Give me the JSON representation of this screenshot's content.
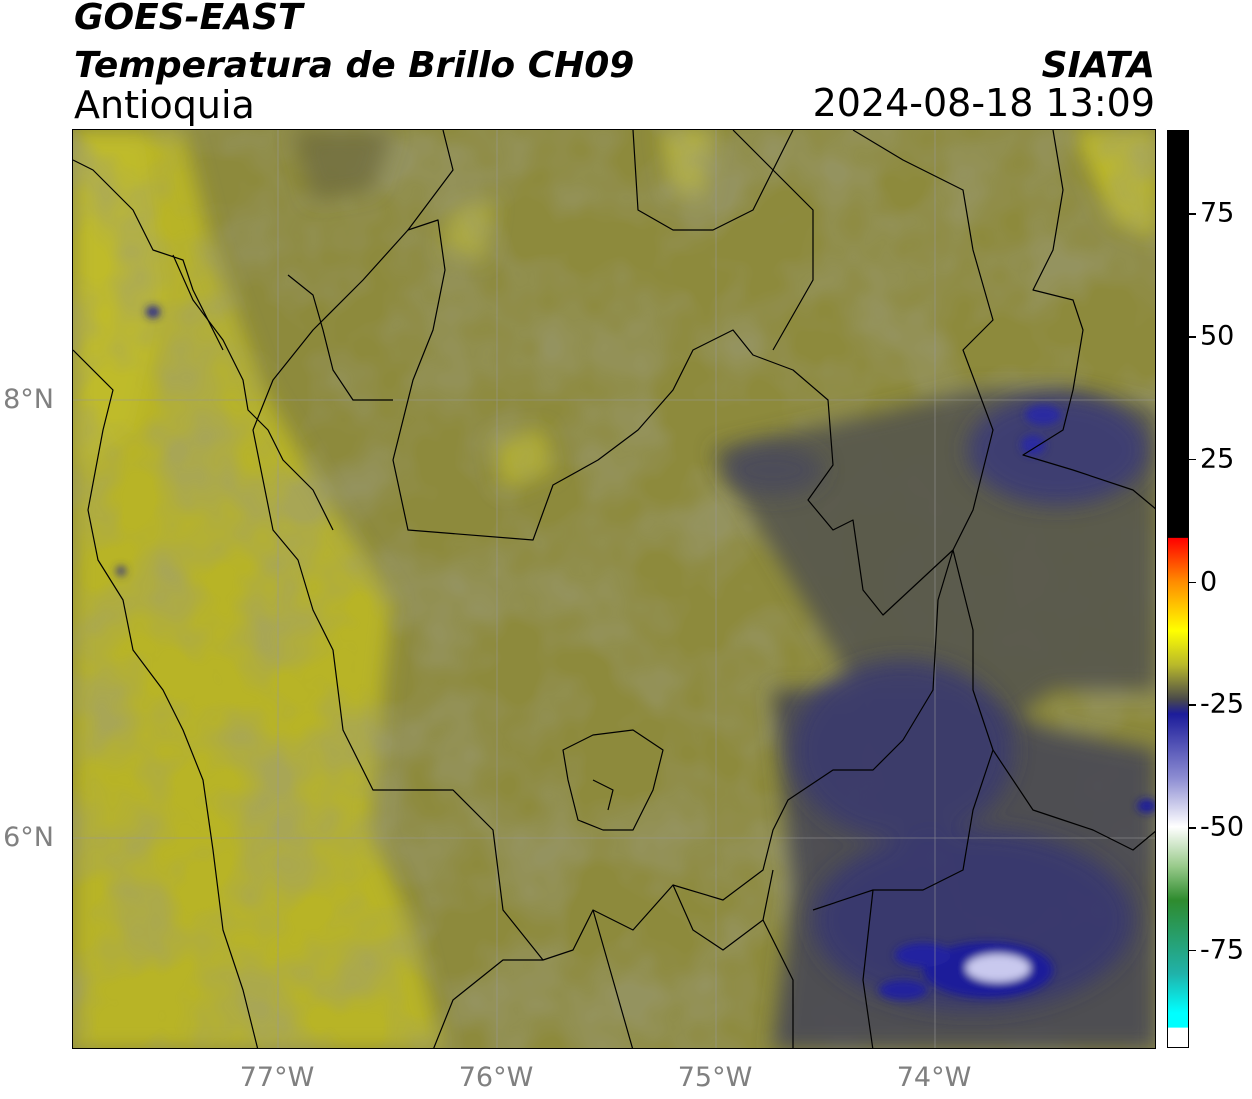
{
  "header": {
    "title": "GOES-EAST",
    "product": "Temperatura de Brillo CH09",
    "region": "Antioquia",
    "source": "SIATA",
    "datetime": "2024-08-18 13:09"
  },
  "map": {
    "projection": "PlateCarree",
    "lon_range": [
      -77.95,
      -72.95
    ],
    "lat_range": [
      4.95,
      9.15
    ],
    "gridlines": true,
    "lat_ticks": [
      {
        "value": 8,
        "label": "8°N"
      },
      {
        "value": 6,
        "label": "6°N"
      }
    ],
    "lon_ticks": [
      {
        "value": -77,
        "label": "77°W"
      },
      {
        "value": -76,
        "label": "76°W"
      },
      {
        "value": -75,
        "label": "75°W"
      },
      {
        "value": -74,
        "label": "74°W"
      }
    ],
    "field": "brightness temperature (°C)",
    "background_color": "#8d8a3c",
    "cold_cloud_regions": [
      {
        "name": "northeast",
        "lon": -73.7,
        "lat": 7.4,
        "temp": -30
      },
      {
        "name": "east-central",
        "lon": -74.0,
        "lat": 6.6,
        "temp": -32
      },
      {
        "name": "southeast-core",
        "lon": -73.75,
        "lat": 5.3,
        "temp": -50
      }
    ]
  },
  "colorbar": {
    "min": -95,
    "max": 92,
    "ticks": [
      {
        "value": 75,
        "label": "75"
      },
      {
        "value": 50,
        "label": "50"
      },
      {
        "value": 25,
        "label": "25"
      },
      {
        "value": 0,
        "label": "0"
      },
      {
        "value": -25,
        "label": "-25"
      },
      {
        "value": -50,
        "label": "-50"
      },
      {
        "value": -75,
        "label": "-75"
      }
    ],
    "stops": [
      {
        "value": 92,
        "color": "#000000"
      },
      {
        "value": 9,
        "color": "#000000"
      },
      {
        "value": 8.9,
        "color": "#ff0000"
      },
      {
        "value": 0,
        "color": "#ff8c00"
      },
      {
        "value": -10,
        "color": "#ffff00"
      },
      {
        "value": -17,
        "color": "#b9b92a"
      },
      {
        "value": -24,
        "color": "#4a4a4a"
      },
      {
        "value": -27,
        "color": "#1c1c9a"
      },
      {
        "value": -40,
        "color": "#8c8cd2"
      },
      {
        "value": -50,
        "color": "#ffffff"
      },
      {
        "value": -58,
        "color": "#9acb8c"
      },
      {
        "value": -65,
        "color": "#2e8b2e"
      },
      {
        "value": -80,
        "color": "#20b2aa"
      },
      {
        "value": -88,
        "color": "#00ffff"
      },
      {
        "value": -91,
        "color": "#00ffff"
      },
      {
        "value": -91.1,
        "color": "#ffffff"
      },
      {
        "value": -95,
        "color": "#ffffff"
      }
    ]
  }
}
